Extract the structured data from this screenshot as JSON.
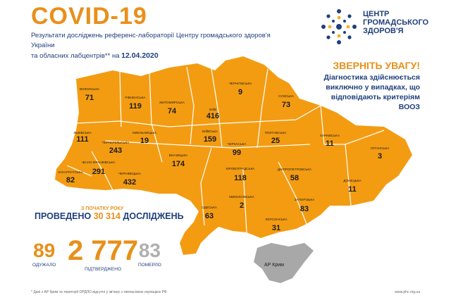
{
  "header": {
    "title": "COVID-19",
    "subtitle_line1": "Результати досліджень референс-лабораторії Центру громадського здоров'я України",
    "subtitle_line2": "та обласних лабцентрів** на",
    "date": "12.04.2020"
  },
  "logo": {
    "icon": "snowflake-dots-icon",
    "line1": "ЦЕНТР",
    "line2": "ГРОМАДСЬКОГО",
    "line3": "ЗДОРОВ'Я"
  },
  "alert": {
    "title": "ЗВЕРНІТЬ УВАГУ!",
    "body": "Діагностика здійснюється виключно у випадках, що відповідають критеріям ВООЗ"
  },
  "regions": [
    {
      "id": "volyn",
      "name": "Волинська",
      "cases": "71"
    },
    {
      "id": "rivne",
      "name": "Рівненська",
      "cases": "119"
    },
    {
      "id": "zhytomyr",
      "name": "Житомирська",
      "cases": "74"
    },
    {
      "id": "kyiv-city",
      "name": "Київ",
      "cases": "416"
    },
    {
      "id": "chernihiv",
      "name": "Чернігівська",
      "cases": "9"
    },
    {
      "id": "sumy",
      "name": "Сумська",
      "cases": "73"
    },
    {
      "id": "lviv",
      "name": "Львівська",
      "cases": "111"
    },
    {
      "id": "ternopil",
      "name": "Тернопільська",
      "cases": "243"
    },
    {
      "id": "khmelnytskyi",
      "name": "Хмельницька",
      "cases": "19"
    },
    {
      "id": "kyiv-oblast",
      "name": "Київська",
      "cases": "159"
    },
    {
      "id": "poltava",
      "name": "Полтавська",
      "cases": "25"
    },
    {
      "id": "kharkiv",
      "name": "Харківська",
      "cases": "11"
    },
    {
      "id": "luhansk",
      "name": "Луганська",
      "cases": "3"
    },
    {
      "id": "ivano-frankivsk",
      "name": "Івано-Франківська",
      "cases": "291"
    },
    {
      "id": "cherkasy",
      "name": "Черкаська",
      "cases": "99"
    },
    {
      "id": "vinnytsia",
      "name": "Вінницька",
      "cases": "174"
    },
    {
      "id": "zakarpattia",
      "name": "Закарпатська",
      "cases": "82"
    },
    {
      "id": "chernivtsi",
      "name": "Чернівецька",
      "cases": "432"
    },
    {
      "id": "kirovohrad",
      "name": "Кіровоградська",
      "cases": "118"
    },
    {
      "id": "dnipropetrovsk",
      "name": "Дніпропетровська",
      "cases": "58"
    },
    {
      "id": "donetsk",
      "name": "Донецька",
      "cases": "11"
    },
    {
      "id": "odesa",
      "name": "Одеська",
      "cases": "63"
    },
    {
      "id": "mykolaiv",
      "name": "Миколаївська",
      "cases": "2"
    },
    {
      "id": "zaporizhzhia",
      "name": "Запорізька",
      "cases": "83"
    },
    {
      "id": "kherson",
      "name": "Херсонська",
      "cases": "31"
    }
  ],
  "crimea": {
    "label": "АР Крим"
  },
  "tests": {
    "since_year": "З ПОЧАТКУ РОКУ",
    "prefix": "ПРОВЕДЕНО",
    "count": "30 314",
    "suffix": "ДОСЛІДЖЕНЬ"
  },
  "stats": [
    {
      "value": "89",
      "label": "ОДУЖАЛО",
      "color": "#e8901a"
    },
    {
      "value": "2 777",
      "label": "ПІДТВЕРДЖЕНО",
      "color": "#e8901a"
    },
    {
      "value": "83",
      "label": "ПОМЕРЛО",
      "color": "#b0b0b0"
    }
  ],
  "footer": {
    "note": "* Дані з АР Крим та території ОРДЛО відсутні у зв'язку з тимчасовою окупацією РФ",
    "url": "www.phc.org.ua"
  },
  "colors": {
    "region_fill": "#f39c12",
    "border": "#ffffff",
    "crimea": "#a8a8a8",
    "accent": "#e8901a",
    "navy": "#1f3f7a"
  }
}
